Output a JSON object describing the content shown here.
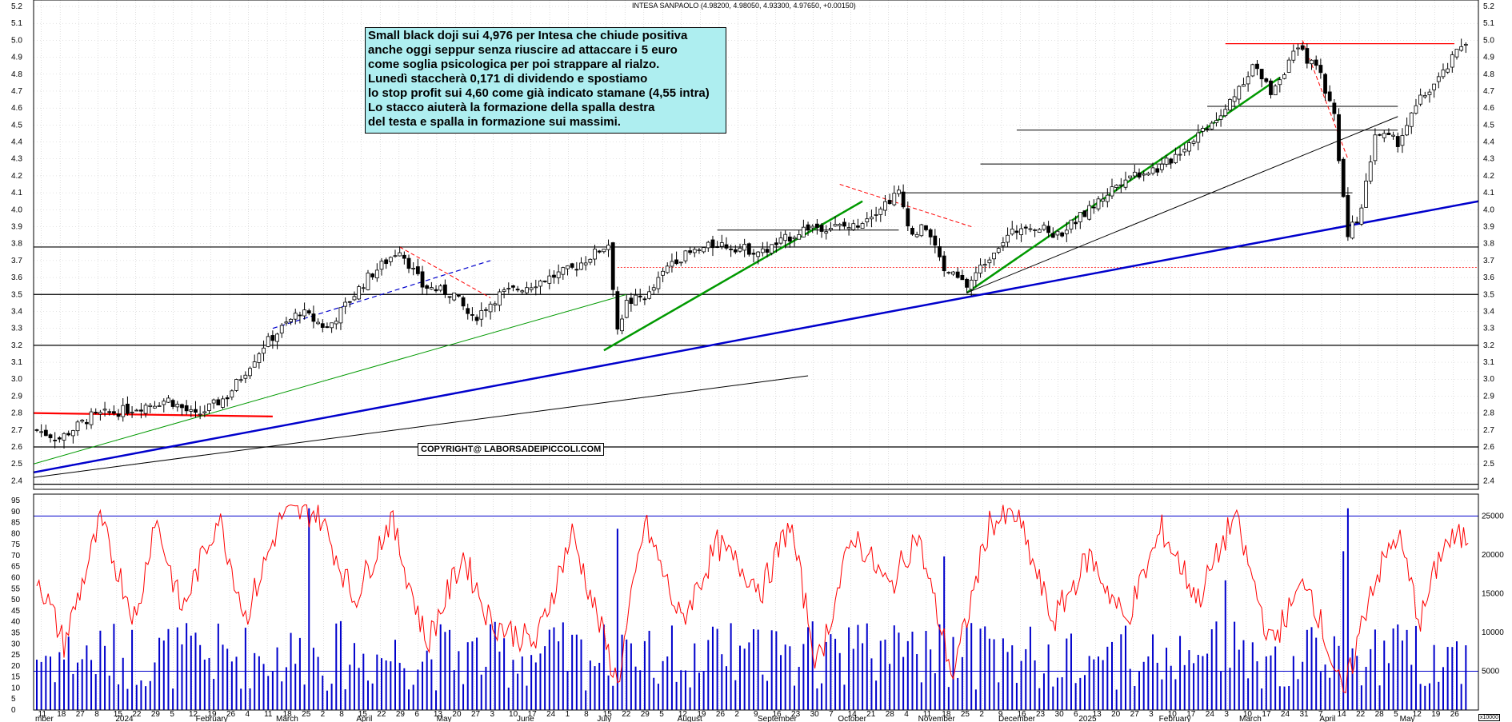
{
  "header": {
    "title": "INTESA SANPAOLO",
    "ohlc_text": "(4.98200, 4.98050, 4.93300, 4.97650, +0.00150)"
  },
  "annotation": {
    "lines": [
      "Small black doji sui 4,976 per Intesa che chiude positiva",
      "anche oggi seppur senza riuscire ad attaccare i 5 euro",
      "come soglia psicologica per poi strappare al rialzo.",
      "Lunedì staccherà 0,171 di dividendo e spostiamo",
      "lo stop profit sui 4,60 come già indicato stamane (4,55 intra)",
      "Lo stacco aiuterà la formazione della spalla destra",
      "del testa e spalla in formazione sui massimi."
    ],
    "bg_color": "#aeeef0"
  },
  "copyright": "COPYRIGHT@ LABORSADEIPICCOLI.COM",
  "volume_unit_label": "x10000",
  "chart_data": [
    {
      "type": "candlestick",
      "name": "price",
      "ylim": [
        2.35,
        5.2
      ],
      "y_ticks": [
        "5.2",
        "5.1",
        "5.0",
        "4.9",
        "4.8",
        "4.7",
        "4.6",
        "4.5",
        "4.4",
        "4.3",
        "4.2",
        "4.1",
        "4.0",
        "3.9",
        "3.8",
        "3.7",
        "3.6",
        "3.5",
        "3.4",
        "3.3",
        "3.2",
        "3.1",
        "3.0",
        "2.9",
        "2.8",
        "2.7",
        "2.6",
        "2.5",
        "2.4"
      ],
      "anchors": [
        {
          "t": 0,
          "v": 2.7
        },
        {
          "t": 5,
          "v": 2.65
        },
        {
          "t": 12,
          "v": 2.78
        },
        {
          "t": 20,
          "v": 2.82
        },
        {
          "t": 29,
          "v": 2.88
        },
        {
          "t": 35,
          "v": 2.78
        },
        {
          "t": 42,
          "v": 2.9
        },
        {
          "t": 50,
          "v": 3.2
        },
        {
          "t": 58,
          "v": 3.4
        },
        {
          "t": 64,
          "v": 3.3
        },
        {
          "t": 73,
          "v": 3.6
        },
        {
          "t": 80,
          "v": 3.77
        },
        {
          "t": 85,
          "v": 3.55
        },
        {
          "t": 92,
          "v": 3.5
        },
        {
          "t": 96,
          "v": 3.35
        },
        {
          "t": 102,
          "v": 3.5
        },
        {
          "t": 108,
          "v": 3.55
        },
        {
          "t": 118,
          "v": 3.65
        },
        {
          "t": 126,
          "v": 3.8
        },
        {
          "t": 128,
          "v": 3.3
        },
        {
          "t": 130,
          "v": 3.45
        },
        {
          "t": 135,
          "v": 3.5
        },
        {
          "t": 140,
          "v": 3.7
        },
        {
          "t": 150,
          "v": 3.8
        },
        {
          "t": 160,
          "v": 3.75
        },
        {
          "t": 170,
          "v": 3.9
        },
        {
          "t": 180,
          "v": 3.9
        },
        {
          "t": 190,
          "v": 4.1
        },
        {
          "t": 193,
          "v": 3.85
        },
        {
          "t": 196,
          "v": 3.9
        },
        {
          "t": 200,
          "v": 3.65
        },
        {
          "t": 205,
          "v": 3.55
        },
        {
          "t": 212,
          "v": 3.8
        },
        {
          "t": 218,
          "v": 3.92
        },
        {
          "t": 225,
          "v": 3.85
        },
        {
          "t": 232,
          "v": 4.0
        },
        {
          "t": 240,
          "v": 4.2
        },
        {
          "t": 248,
          "v": 4.25
        },
        {
          "t": 256,
          "v": 4.45
        },
        {
          "t": 262,
          "v": 4.6
        },
        {
          "t": 268,
          "v": 4.85
        },
        {
          "t": 272,
          "v": 4.7
        },
        {
          "t": 278,
          "v": 4.95
        },
        {
          "t": 283,
          "v": 4.8
        },
        {
          "t": 286,
          "v": 4.55
        },
        {
          "t": 289,
          "v": 3.85
        },
        {
          "t": 292,
          "v": 4.0
        },
        {
          "t": 295,
          "v": 4.45
        },
        {
          "t": 300,
          "v": 4.4
        },
        {
          "t": 305,
          "v": 4.65
        },
        {
          "t": 310,
          "v": 4.8
        },
        {
          "t": 314,
          "v": 4.97
        }
      ],
      "last_close": 4.9765
    },
    {
      "type": "bar+line",
      "name": "volume_and_oscillator",
      "left_ticks": [
        "95",
        "90",
        "85",
        "80",
        "75",
        "70",
        "65",
        "60",
        "55",
        "50",
        "45",
        "40",
        "35",
        "30",
        "25",
        "20",
        "15",
        "10",
        "5",
        "0"
      ],
      "right_ticks": [
        "25000",
        "20000",
        "15000",
        "10000",
        "5000"
      ],
      "left_ylim": [
        0,
        95
      ],
      "right_ylim": [
        0,
        27000
      ],
      "oscillator_anchors": [
        {
          "t": 0,
          "v": 62
        },
        {
          "t": 6,
          "v": 30
        },
        {
          "t": 14,
          "v": 85
        },
        {
          "t": 22,
          "v": 40
        },
        {
          "t": 26,
          "v": 88
        },
        {
          "t": 32,
          "v": 45
        },
        {
          "t": 40,
          "v": 88
        },
        {
          "t": 46,
          "v": 42
        },
        {
          "t": 54,
          "v": 88
        },
        {
          "t": 62,
          "v": 90
        },
        {
          "t": 70,
          "v": 50
        },
        {
          "t": 78,
          "v": 87
        },
        {
          "t": 86,
          "v": 30
        },
        {
          "t": 94,
          "v": 70
        },
        {
          "t": 100,
          "v": 40
        },
        {
          "t": 110,
          "v": 30
        },
        {
          "t": 118,
          "v": 80
        },
        {
          "t": 128,
          "v": 12
        },
        {
          "t": 134,
          "v": 85
        },
        {
          "t": 142,
          "v": 40
        },
        {
          "t": 150,
          "v": 75
        },
        {
          "t": 160,
          "v": 55
        },
        {
          "t": 166,
          "v": 85
        },
        {
          "t": 172,
          "v": 20
        },
        {
          "t": 180,
          "v": 80
        },
        {
          "t": 188,
          "v": 55
        },
        {
          "t": 194,
          "v": 80
        },
        {
          "t": 202,
          "v": 15
        },
        {
          "t": 210,
          "v": 85
        },
        {
          "t": 216,
          "v": 88
        },
        {
          "t": 224,
          "v": 40
        },
        {
          "t": 232,
          "v": 70
        },
        {
          "t": 240,
          "v": 40
        },
        {
          "t": 248,
          "v": 82
        },
        {
          "t": 256,
          "v": 50
        },
        {
          "t": 264,
          "v": 88
        },
        {
          "t": 272,
          "v": 30
        },
        {
          "t": 280,
          "v": 60
        },
        {
          "t": 288,
          "v": 5
        },
        {
          "t": 294,
          "v": 55
        },
        {
          "t": 300,
          "v": 80
        },
        {
          "t": 305,
          "v": 40
        },
        {
          "t": 310,
          "v": 75
        },
        {
          "t": 314,
          "v": 78
        }
      ]
    }
  ],
  "x_axis": {
    "day_ticks": [
      "11",
      "18",
      "27",
      "8",
      "15",
      "22",
      "29",
      "5",
      "12",
      "19",
      "26",
      "4",
      "11",
      "18",
      "25",
      "2",
      "8",
      "15",
      "22",
      "29",
      "6",
      "13",
      "20",
      "27",
      "3",
      "10",
      "17",
      "24",
      "1",
      "8",
      "15",
      "22",
      "29",
      "5",
      "12",
      "19",
      "26",
      "2",
      "9",
      "16",
      "23",
      "30",
      "7",
      "14",
      "21",
      "28",
      "4",
      "11",
      "18",
      "25",
      "2",
      "9",
      "16",
      "23",
      "30",
      "6",
      "13",
      "20",
      "27",
      "3",
      "10",
      "17",
      "24",
      "3",
      "10",
      "17",
      "24",
      "31",
      "7",
      "14",
      "22",
      "28",
      "5",
      "12",
      "19",
      "26"
    ],
    "month_labels": [
      "mber",
      "2024",
      "February",
      "March",
      "April",
      "May",
      "June",
      "July",
      "August",
      "September",
      "October",
      "November",
      "December",
      "2025",
      "February",
      "March",
      "April",
      "May"
    ]
  },
  "colors": {
    "candle": "#000000",
    "osc_line": "#ff0000",
    "volume_bar": "#0000cc",
    "trend_blue": "#0000cc",
    "trend_green": "#009900",
    "resistance_red": "#ff0000",
    "grid": "#c8c8c8"
  }
}
